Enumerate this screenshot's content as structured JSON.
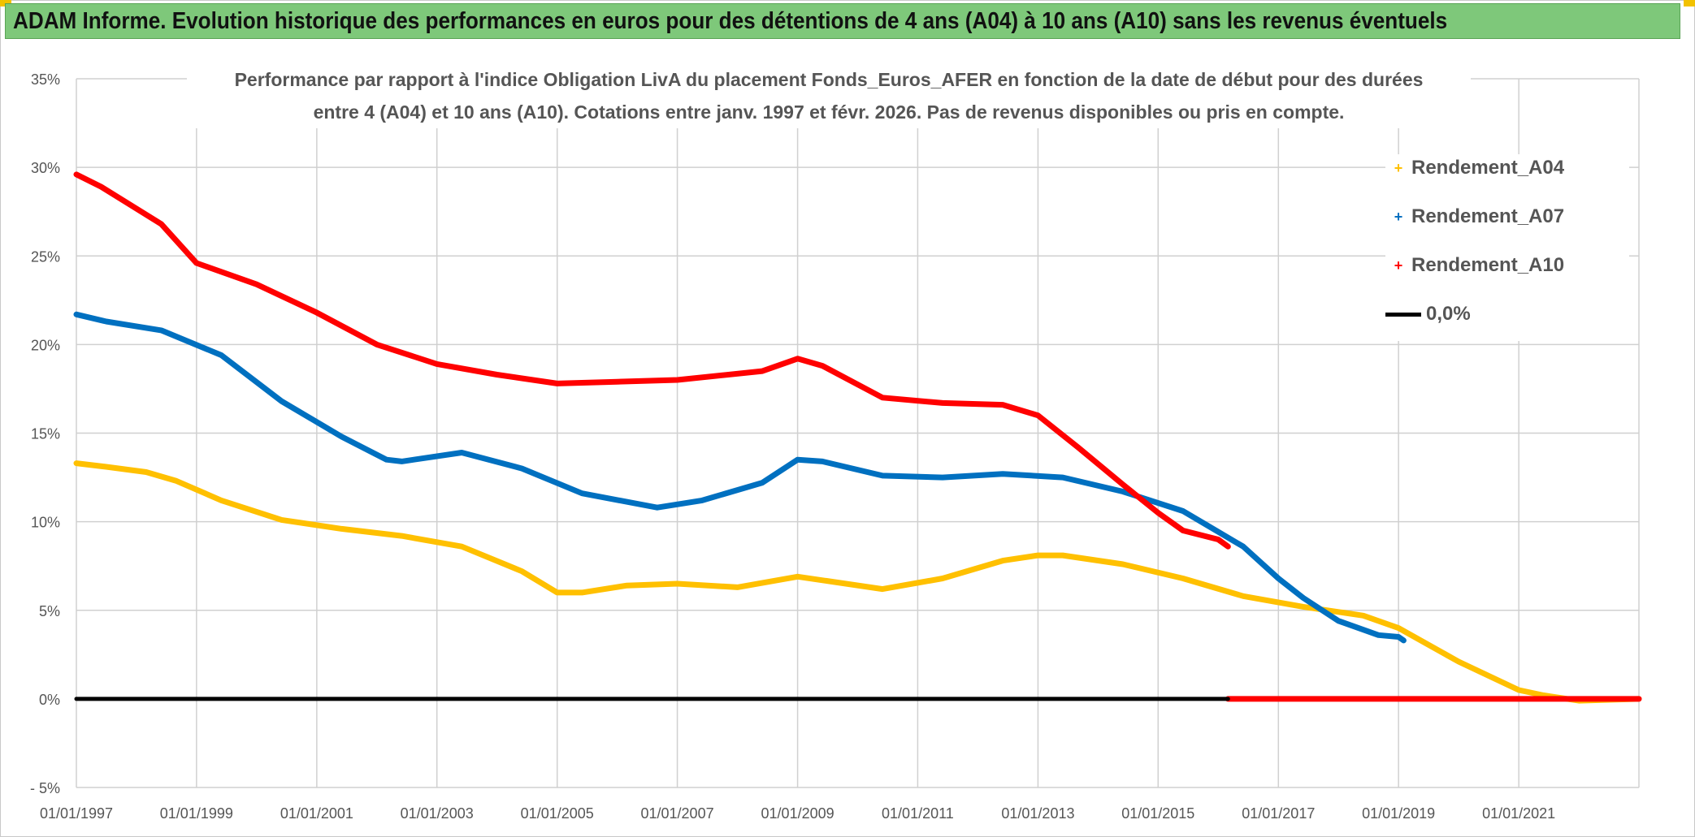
{
  "header": {
    "title": "ADAM Informe. Evolution historique des performances en euros pour des détentions de 4 ans (A04) à 10 ans (A10) sans les revenus éventuels"
  },
  "colors": {
    "header_bg": "#7ec87a",
    "corner_accent": "#f2c200",
    "a04": "#ffc000",
    "a07": "#0070c0",
    "a10": "#ff0000",
    "zero": "#000000"
  },
  "chart_data": {
    "type": "line",
    "title_lines": [
      "Performance  par rapport à l'indice Obligation LivA  du placement Fonds_Euros_AFER en fonction de la date de début pour des durées",
      "entre 4 (A04) et 10 ans (A10). Cotations entre janv. 1997 et févr. 2026. Pas de revenus disponibles ou pris en compte."
    ],
    "xlim": [
      "1997-01-01",
      "2023-01-01"
    ],
    "ylim": [
      -5,
      35
    ],
    "y_ticks": [
      -5,
      0,
      5,
      10,
      15,
      20,
      25,
      30,
      35
    ],
    "y_tick_labels": [
      "- 5%",
      "0%",
      "5%",
      "10%",
      "15%",
      "20%",
      "25%",
      "30%",
      "35%"
    ],
    "x_tick_labels": [
      "01/01/1997",
      "01/01/1999",
      "01/01/2001",
      "01/01/2003",
      "01/01/2005",
      "01/01/2007",
      "01/01/2009",
      "01/01/2011",
      "01/01/2013",
      "01/01/2015",
      "01/01/2017",
      "01/01/2019",
      "01/01/2021"
    ],
    "grid": true,
    "legend_position": "top-right",
    "series": [
      {
        "name": "Rendement_A04",
        "color": "#ffc000",
        "points": [
          [
            "1997-01-01",
            13.3
          ],
          [
            "1997-07-01",
            13.1
          ],
          [
            "1998-03-01",
            12.8
          ],
          [
            "1998-09-01",
            12.3
          ],
          [
            "1999-06-01",
            11.2
          ],
          [
            "2000-06-01",
            10.1
          ],
          [
            "2001-06-01",
            9.6
          ],
          [
            "2002-06-01",
            9.2
          ],
          [
            "2003-06-01",
            8.6
          ],
          [
            "2004-06-01",
            7.2
          ],
          [
            "2005-01-01",
            6.0
          ],
          [
            "2005-06-01",
            6.0
          ],
          [
            "2006-03-01",
            6.4
          ],
          [
            "2007-01-01",
            6.5
          ],
          [
            "2008-01-01",
            6.3
          ],
          [
            "2009-01-01",
            6.9
          ],
          [
            "2010-06-01",
            6.2
          ],
          [
            "2011-06-01",
            6.8
          ],
          [
            "2012-06-01",
            7.8
          ],
          [
            "2013-01-01",
            8.1
          ],
          [
            "2013-06-01",
            8.1
          ],
          [
            "2014-06-01",
            7.6
          ],
          [
            "2015-06-01",
            6.8
          ],
          [
            "2016-06-01",
            5.8
          ],
          [
            "2017-06-01",
            5.2
          ],
          [
            "2018-06-01",
            4.7
          ],
          [
            "2019-01-01",
            4.0
          ],
          [
            "2020-01-01",
            2.1
          ],
          [
            "2021-01-01",
            0.5
          ],
          [
            "2021-06-01",
            0.2
          ],
          [
            "2022-01-01",
            -0.1
          ],
          [
            "2023-01-01",
            0.0
          ]
        ]
      },
      {
        "name": "Rendement_A07",
        "color": "#0070c0",
        "points": [
          [
            "1997-01-01",
            21.7
          ],
          [
            "1997-07-01",
            21.3
          ],
          [
            "1998-06-01",
            20.8
          ],
          [
            "1999-06-01",
            19.4
          ],
          [
            "2000-06-01",
            16.8
          ],
          [
            "2001-06-01",
            14.8
          ],
          [
            "2002-03-01",
            13.5
          ],
          [
            "2002-06-01",
            13.4
          ],
          [
            "2003-06-01",
            13.9
          ],
          [
            "2004-06-01",
            13.0
          ],
          [
            "2005-06-01",
            11.6
          ],
          [
            "2006-09-01",
            10.8
          ],
          [
            "2007-06-01",
            11.2
          ],
          [
            "2008-06-01",
            12.2
          ],
          [
            "2009-01-01",
            13.5
          ],
          [
            "2009-06-01",
            13.4
          ],
          [
            "2010-06-01",
            12.6
          ],
          [
            "2011-06-01",
            12.5
          ],
          [
            "2012-06-01",
            12.7
          ],
          [
            "2013-06-01",
            12.5
          ],
          [
            "2014-06-01",
            11.7
          ],
          [
            "2015-06-01",
            10.6
          ],
          [
            "2016-06-01",
            8.6
          ],
          [
            "2017-01-01",
            6.8
          ],
          [
            "2017-06-01",
            5.7
          ],
          [
            "2018-01-01",
            4.4
          ],
          [
            "2018-09-01",
            3.6
          ],
          [
            "2019-01-01",
            3.5
          ],
          [
            "2019-02-01",
            3.3
          ]
        ]
      },
      {
        "name": "Rendement_A10",
        "color": "#ff0000",
        "points": [
          [
            "1997-01-01",
            29.6
          ],
          [
            "1997-06-01",
            28.9
          ],
          [
            "1998-06-01",
            26.8
          ],
          [
            "1999-01-01",
            24.6
          ],
          [
            "2000-01-01",
            23.4
          ],
          [
            "2001-01-01",
            21.8
          ],
          [
            "2002-01-01",
            20.0
          ],
          [
            "2003-01-01",
            18.9
          ],
          [
            "2004-01-01",
            18.3
          ],
          [
            "2005-01-01",
            17.8
          ],
          [
            "2006-01-01",
            17.9
          ],
          [
            "2007-01-01",
            18.0
          ],
          [
            "2008-06-01",
            18.5
          ],
          [
            "2009-01-01",
            19.2
          ],
          [
            "2009-06-01",
            18.8
          ],
          [
            "2010-06-01",
            17.0
          ],
          [
            "2011-06-01",
            16.7
          ],
          [
            "2012-06-01",
            16.6
          ],
          [
            "2013-01-01",
            16.0
          ],
          [
            "2013-09-01",
            14.2
          ],
          [
            "2014-06-01",
            12.1
          ],
          [
            "2015-01-01",
            10.5
          ],
          [
            "2015-06-01",
            9.5
          ],
          [
            "2016-01-01",
            9.0
          ],
          [
            "2016-03-01",
            8.6
          ]
        ]
      },
      {
        "name": "Rendement_A10",
        "color": "#ff0000",
        "points": [
          [
            "2016-03-01",
            0.0
          ],
          [
            "2023-01-01",
            0.0
          ]
        ]
      },
      {
        "name": "0,0%",
        "color": "#000000",
        "points": [
          [
            "1997-01-01",
            0.0
          ],
          [
            "2016-03-01",
            0.0
          ]
        ]
      }
    ]
  },
  "legend": {
    "items": [
      {
        "label": "Rendement_A04",
        "marker": "+",
        "color": "#ffc000"
      },
      {
        "label": "Rendement_A07",
        "marker": "+",
        "color": "#0070c0"
      },
      {
        "label": "Rendement_A10",
        "marker": "+",
        "color": "#ff0000"
      },
      {
        "label": "0,0%",
        "marker": "line",
        "color": "#000000"
      }
    ]
  }
}
